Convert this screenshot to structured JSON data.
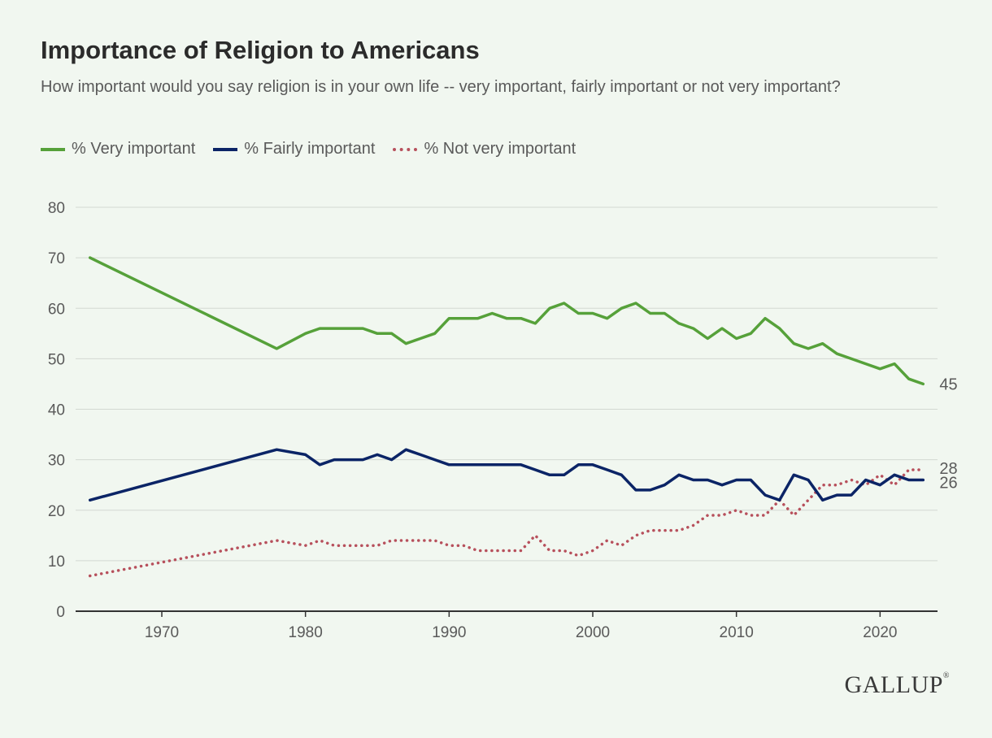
{
  "title": "Importance of Religion to Americans",
  "subtitle": "How important would you say religion is in your own life -- very important, fairly important or not very important?",
  "logo": "GALLUP",
  "colors": {
    "very": "#56a13a",
    "fairly": "#0b2466",
    "not_very": "#b7505c",
    "grid": "#d3d8d2",
    "axis": "#333333",
    "tick_text": "#5a5a5a"
  },
  "chart_data": {
    "type": "line",
    "title": "Importance of Religion to Americans",
    "xlabel": "",
    "ylabel": "",
    "xlim": [
      1964,
      2024
    ],
    "ylim": [
      0,
      80
    ],
    "x_ticks": [
      1970,
      1980,
      1990,
      2000,
      2010,
      2020
    ],
    "y_ticks": [
      0,
      10,
      20,
      30,
      40,
      50,
      60,
      70,
      80
    ],
    "grid": true,
    "legend_position": "top-left",
    "end_labels": [
      {
        "series": "% Very important",
        "x": 2023,
        "y": 45,
        "text": "45"
      },
      {
        "series": "% Not very important",
        "x": 2023,
        "y": 28,
        "text": "28"
      },
      {
        "series": "% Fairly important",
        "x": 2023,
        "y": 26,
        "text": "26"
      }
    ],
    "series": [
      {
        "name": "% Very important",
        "style": "solid",
        "color": "#56a13a",
        "points": [
          [
            1965,
            70
          ],
          [
            1978,
            52
          ],
          [
            1980,
            55
          ],
          [
            1981,
            56
          ],
          [
            1982,
            56
          ],
          [
            1983,
            56
          ],
          [
            1984,
            56
          ],
          [
            1985,
            55
          ],
          [
            1986,
            55
          ],
          [
            1987,
            53
          ],
          [
            1988,
            54
          ],
          [
            1989,
            55
          ],
          [
            1990,
            58
          ],
          [
            1991,
            58
          ],
          [
            1992,
            58
          ],
          [
            1993,
            59
          ],
          [
            1994,
            58
          ],
          [
            1995,
            58
          ],
          [
            1996,
            57
          ],
          [
            1997,
            60
          ],
          [
            1998,
            61
          ],
          [
            1999,
            59
          ],
          [
            2000,
            59
          ],
          [
            2001,
            58
          ],
          [
            2002,
            60
          ],
          [
            2003,
            61
          ],
          [
            2004,
            59
          ],
          [
            2005,
            59
          ],
          [
            2006,
            57
          ],
          [
            2007,
            56
          ],
          [
            2008,
            54
          ],
          [
            2009,
            56
          ],
          [
            2010,
            54
          ],
          [
            2011,
            55
          ],
          [
            2012,
            58
          ],
          [
            2013,
            56
          ],
          [
            2014,
            53
          ],
          [
            2015,
            52
          ],
          [
            2016,
            53
          ],
          [
            2017,
            51
          ],
          [
            2018,
            50
          ],
          [
            2019,
            49
          ],
          [
            2020,
            48
          ],
          [
            2021,
            49
          ],
          [
            2022,
            46
          ],
          [
            2023,
            45
          ]
        ]
      },
      {
        "name": "% Fairly important",
        "style": "solid",
        "color": "#0b2466",
        "points": [
          [
            1965,
            22
          ],
          [
            1978,
            32
          ],
          [
            1980,
            31
          ],
          [
            1981,
            29
          ],
          [
            1982,
            30
          ],
          [
            1983,
            30
          ],
          [
            1984,
            30
          ],
          [
            1985,
            31
          ],
          [
            1986,
            30
          ],
          [
            1987,
            32
          ],
          [
            1988,
            31
          ],
          [
            1989,
            30
          ],
          [
            1990,
            29
          ],
          [
            1991,
            29
          ],
          [
            1992,
            29
          ],
          [
            1993,
            29
          ],
          [
            1994,
            29
          ],
          [
            1995,
            29
          ],
          [
            1996,
            28
          ],
          [
            1997,
            27
          ],
          [
            1998,
            27
          ],
          [
            1999,
            29
          ],
          [
            2000,
            29
          ],
          [
            2001,
            28
          ],
          [
            2002,
            27
          ],
          [
            2003,
            24
          ],
          [
            2004,
            24
          ],
          [
            2005,
            25
          ],
          [
            2006,
            27
          ],
          [
            2007,
            26
          ],
          [
            2008,
            26
          ],
          [
            2009,
            25
          ],
          [
            2010,
            26
          ],
          [
            2011,
            26
          ],
          [
            2012,
            23
          ],
          [
            2013,
            22
          ],
          [
            2014,
            27
          ],
          [
            2015,
            26
          ],
          [
            2016,
            22
          ],
          [
            2017,
            23
          ],
          [
            2018,
            23
          ],
          [
            2019,
            26
          ],
          [
            2020,
            25
          ],
          [
            2021,
            27
          ],
          [
            2022,
            26
          ],
          [
            2023,
            26
          ]
        ]
      },
      {
        "name": "% Not very important",
        "style": "dotted",
        "color": "#b7505c",
        "points": [
          [
            1965,
            7
          ],
          [
            1978,
            14
          ],
          [
            1980,
            13
          ],
          [
            1981,
            14
          ],
          [
            1982,
            13
          ],
          [
            1983,
            13
          ],
          [
            1984,
            13
          ],
          [
            1985,
            13
          ],
          [
            1986,
            14
          ],
          [
            1987,
            14
          ],
          [
            1988,
            14
          ],
          [
            1989,
            14
          ],
          [
            1990,
            13
          ],
          [
            1991,
            13
          ],
          [
            1992,
            12
          ],
          [
            1993,
            12
          ],
          [
            1994,
            12
          ],
          [
            1995,
            12
          ],
          [
            1996,
            15
          ],
          [
            1997,
            12
          ],
          [
            1998,
            12
          ],
          [
            1999,
            11
          ],
          [
            2000,
            12
          ],
          [
            2001,
            14
          ],
          [
            2002,
            13
          ],
          [
            2003,
            15
          ],
          [
            2004,
            16
          ],
          [
            2005,
            16
          ],
          [
            2006,
            16
          ],
          [
            2007,
            17
          ],
          [
            2008,
            19
          ],
          [
            2009,
            19
          ],
          [
            2010,
            20
          ],
          [
            2011,
            19
          ],
          [
            2012,
            19
          ],
          [
            2013,
            22
          ],
          [
            2014,
            19
          ],
          [
            2015,
            22
          ],
          [
            2016,
            25
          ],
          [
            2017,
            25
          ],
          [
            2018,
            26
          ],
          [
            2019,
            25
          ],
          [
            2020,
            27
          ],
          [
            2021,
            25
          ],
          [
            2022,
            28
          ],
          [
            2023,
            28
          ]
        ]
      }
    ]
  }
}
